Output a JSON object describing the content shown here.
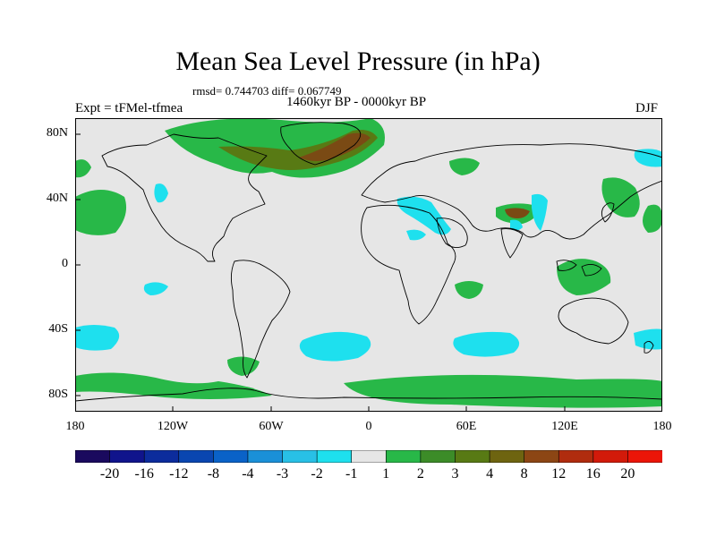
{
  "plot": {
    "title": "Mean Sea Level Pressure (in hPa)",
    "stats": "rmsd= 0.744703 diff= 0.067749",
    "period": "1460kyr BP - 0000kyr BP",
    "experiment": "Expt = tFMel-tfmea",
    "season": "DJF"
  },
  "axes": {
    "lat_labels": [
      "80N",
      "40N",
      "0",
      "40S",
      "80S"
    ],
    "lon_labels": [
      "180",
      "120W",
      "60W",
      "0",
      "60E",
      "120E",
      "180"
    ]
  },
  "colorbar": {
    "labels": [
      "-20",
      "-16",
      "-12",
      "-8",
      "-4",
      "-3",
      "-2",
      "-1",
      "1",
      "2",
      "3",
      "4",
      "8",
      "12",
      "16",
      "20"
    ],
    "colors": [
      "#1a0a5e",
      "#10148c",
      "#0c2c9c",
      "#0a46b0",
      "#0a62c8",
      "#1a90d8",
      "#28c0e6",
      "#1ee0ee",
      "#e6e6e6",
      "#28b848",
      "#3c8c28",
      "#587a14",
      "#6e6410",
      "#8c4614",
      "#b02c0e",
      "#d21a0a",
      "#ec1508"
    ]
  },
  "colors": {
    "neutral": "#e6e6e6",
    "positive_light": "#28b848",
    "positive_mid": "#587a14",
    "positive_high": "#7a4a14",
    "negative_light": "#1ee0ee"
  }
}
